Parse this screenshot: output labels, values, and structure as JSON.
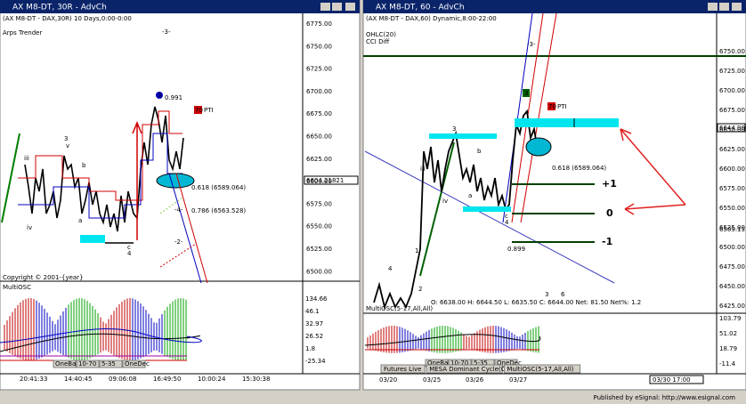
{
  "footer": "Published by eSignal: http://www.esignal.com",
  "left": {
    "title": "AX M8-DT, 30R - AdvCh",
    "subtitle": "(AX M8-DT - DAX,30R) 10 Days,0:00-0:00",
    "study": "Arps Trender",
    "price_ticks": [
      "6775.00",
      "6750.00",
      "6725.00",
      "6700.00",
      "6675.00",
      "6650.00",
      "6625.00",
      "6600.00",
      "6575.00",
      "6550.00",
      "6525.00",
      "6500.00"
    ],
    "last_price": "6604.21821",
    "annotations": [
      "-3-",
      "0.991",
      "70",
      "PTI",
      "0.618 (6589.064)",
      "0.786 (6563.528)",
      "-4-",
      "-2-",
      "iii",
      "iv",
      "3",
      "v",
      "a",
      "b",
      "c",
      "4",
      "3"
    ],
    "osc_title": "MultiOSC",
    "osc_values": [
      "134.66",
      "46.1",
      "32.97",
      "26.52",
      "1.8",
      "-25.34"
    ],
    "osc_buttons": [
      "OneBand",
      "10-70",
      "5-35",
      "OneDec"
    ],
    "times": [
      "20:41:33",
      "14:40:45",
      "09:06:08",
      "16:49:50",
      "10:00:24",
      "15:30:38"
    ],
    "copyright": "Copyright © 2001-{year}"
  },
  "right": {
    "title": "AX M8-DT, 60 - AdvCh",
    "subtitle": "(AX M8-DT - DAX,60) Dynamic,8:00-22:00",
    "studies": [
      "OHLC(20)",
      "CCI Diff"
    ],
    "price_ticks": [
      "6750.00",
      "6725.00",
      "6700.00",
      "6675.00",
      "6650.00",
      "6625.00",
      "6600.00",
      "6575.00",
      "6550.00",
      "6525.00",
      "6500.00",
      "6475.00",
      "6450.00",
      "6425.00"
    ],
    "last_price": "6644.00",
    "other_price": "6509.13",
    "annotations": [
      "-3-",
      "3",
      "70",
      "PTI",
      "0.618 (6589.064)",
      "0.899",
      "+1",
      "0",
      "-1",
      "iii",
      "iv",
      "3",
      "a",
      "b",
      "c",
      "4",
      "1",
      "2",
      "4"
    ],
    "quote": "O: 6638.00   H: 6644.50   L: 6635.50   C: 6644.00   Net: 81.50   Net%: 1.2",
    "quote_marks": [
      "3",
      "6"
    ],
    "osc_title": "MultiOSC(5-17,All,All)",
    "osc_values": [
      "103.79",
      "51.02",
      "18.79",
      "-11.4"
    ],
    "osc_buttons": [
      "OneBand",
      "10-70",
      "5-35",
      "OneDec"
    ],
    "tabs": [
      "Futures Live",
      "MESA Dominant Cycle(C)",
      "MultiOSC(5-17,All,All)"
    ],
    "dates": [
      "03/20",
      "03/25",
      "03/26",
      "03/27"
    ],
    "cursor_time": "03/30 17:00"
  }
}
